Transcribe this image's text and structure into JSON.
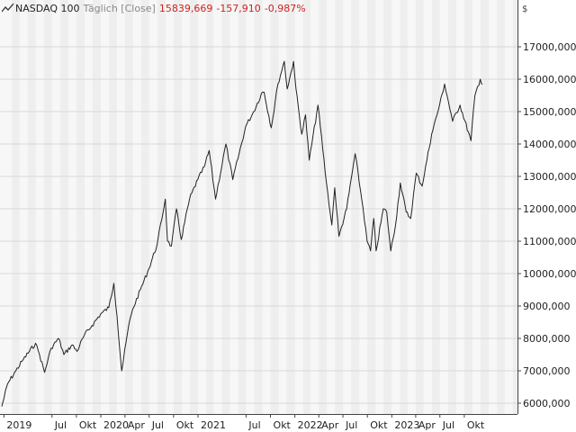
{
  "header": {
    "icon": "line-chart-icon",
    "name": "NASDAQ 100",
    "interval": "Täglich [Close]",
    "value": "15839,669",
    "change": "-157,910",
    "change_pct": "-0,987%",
    "change_color": "#cc2222"
  },
  "currency": "$",
  "chart_data": {
    "type": "line",
    "title": "NASDAQ 100",
    "xlabel": "",
    "ylabel": "",
    "ylim": [
      5600000,
      17700000
    ],
    "x_ticks": [
      "2019",
      "Jul",
      "Okt",
      "2020",
      "Apr",
      "Jul",
      "Okt",
      "2021",
      "Jul",
      "Okt",
      "2022",
      "Apr",
      "Jul",
      "Okt",
      "2023",
      "Apr",
      "Jul",
      "Okt"
    ],
    "y_ticks": [
      "6000,000",
      "7000,000",
      "8000,000",
      "9000,000",
      "10000,000",
      "11000,000",
      "12000,000",
      "13000,000",
      "14000,000",
      "15000,000",
      "16000,000",
      "17000,000"
    ],
    "y_tick_values": [
      6000000,
      7000000,
      8000000,
      9000000,
      10000000,
      11000000,
      12000000,
      13000000,
      14000000,
      15000000,
      16000000,
      17000000
    ],
    "grid": true,
    "line_color": "#222222",
    "series": [
      {
        "points": [
          [
            "2018-12-24",
            5900000
          ],
          [
            "2019-01-15",
            6600000
          ],
          [
            "2019-02-15",
            7000000
          ],
          [
            "2019-03-15",
            7350000
          ],
          [
            "2019-04-30",
            7850000
          ],
          [
            "2019-05-15",
            7500000
          ],
          [
            "2019-06-03",
            6950000
          ],
          [
            "2019-06-28",
            7700000
          ],
          [
            "2019-07-26",
            8000000
          ],
          [
            "2019-08-15",
            7500000
          ],
          [
            "2019-09-15",
            7800000
          ],
          [
            "2019-10-03",
            7600000
          ],
          [
            "2019-10-31",
            8100000
          ],
          [
            "2019-11-29",
            8400000
          ],
          [
            "2019-12-31",
            8750000
          ],
          [
            "2020-01-31",
            8950000
          ],
          [
            "2020-02-19",
            9700000
          ],
          [
            "2020-03-02",
            8700000
          ],
          [
            "2020-03-16",
            7300000
          ],
          [
            "2020-03-20",
            7000000
          ],
          [
            "2020-04-15",
            8400000
          ],
          [
            "2020-04-30",
            8900000
          ],
          [
            "2020-05-29",
            9500000
          ],
          [
            "2020-06-30",
            10150000
          ],
          [
            "2020-07-31",
            10900000
          ],
          [
            "2020-08-31",
            12300000
          ],
          [
            "2020-09-08",
            11000000
          ],
          [
            "2020-09-23",
            10850000
          ],
          [
            "2020-10-12",
            12000000
          ],
          [
            "2020-10-30",
            11050000
          ],
          [
            "2020-11-30",
            12300000
          ],
          [
            "2020-12-31",
            12900000
          ],
          [
            "2021-01-25",
            13300000
          ],
          [
            "2021-02-12",
            13800000
          ],
          [
            "2021-03-08",
            12300000
          ],
          [
            "2021-04-16",
            14000000
          ],
          [
            "2021-05-12",
            12900000
          ],
          [
            "2021-06-30",
            14550000
          ],
          [
            "2021-07-30",
            15000000
          ],
          [
            "2021-08-31",
            15600000
          ],
          [
            "2021-09-07",
            15600000
          ],
          [
            "2021-10-04",
            14500000
          ],
          [
            "2021-10-29",
            15850000
          ],
          [
            "2021-11-22",
            16550000
          ],
          [
            "2021-12-03",
            15700000
          ],
          [
            "2021-12-27",
            16550000
          ],
          [
            "2022-01-05",
            15700000
          ],
          [
            "2022-01-27",
            14300000
          ],
          [
            "2022-02-10",
            14900000
          ],
          [
            "2022-02-24",
            13500000
          ],
          [
            "2022-03-29",
            15200000
          ],
          [
            "2022-04-29",
            12850000
          ],
          [
            "2022-05-20",
            11500000
          ],
          [
            "2022-05-31",
            12650000
          ],
          [
            "2022-06-16",
            11150000
          ],
          [
            "2022-07-15",
            12000000
          ],
          [
            "2022-08-16",
            13700000
          ],
          [
            "2022-09-15",
            12000000
          ],
          [
            "2022-09-30",
            11000000
          ],
          [
            "2022-10-13",
            10700000
          ],
          [
            "2022-10-25",
            11700000
          ],
          [
            "2022-11-03",
            10700000
          ],
          [
            "2022-11-30",
            12000000
          ],
          [
            "2022-12-13",
            11900000
          ],
          [
            "2022-12-28",
            10700000
          ],
          [
            "2023-01-15",
            11500000
          ],
          [
            "2023-02-02",
            12800000
          ],
          [
            "2023-02-24",
            11900000
          ],
          [
            "2023-03-13",
            11700000
          ],
          [
            "2023-04-03",
            13100000
          ],
          [
            "2023-04-25",
            12700000
          ],
          [
            "2023-05-31",
            14300000
          ],
          [
            "2023-06-30",
            15200000
          ],
          [
            "2023-07-19",
            15850000
          ],
          [
            "2023-08-18",
            14700000
          ],
          [
            "2023-09-15",
            15200000
          ],
          [
            "2023-10-26",
            14100000
          ],
          [
            "2023-11-10",
            15500000
          ],
          [
            "2023-11-30",
            16000000
          ],
          [
            "2023-12-08",
            15840000
          ]
        ]
      }
    ]
  }
}
